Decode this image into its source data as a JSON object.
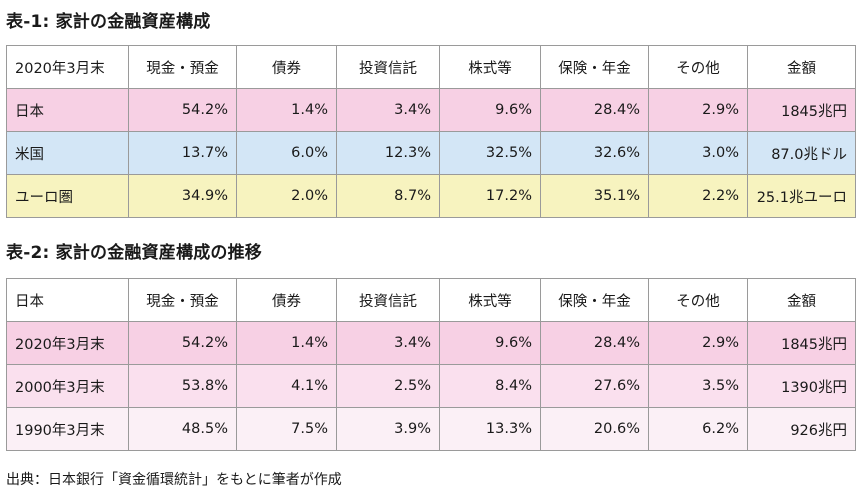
{
  "table1": {
    "title": "表-1: 家計の金融資産構成",
    "header": [
      "2020年3月末",
      "現金・預金",
      "債券",
      "投資信託",
      "株式等",
      "保険・年金",
      "その他",
      "金額"
    ],
    "rows": [
      {
        "cells": [
          "日本",
          "54.2%",
          "1.4%",
          "3.4%",
          "9.6%",
          "28.4%",
          "2.9%",
          "1845兆円"
        ],
        "color": "#f7d0e4"
      },
      {
        "cells": [
          "米国",
          "13.7%",
          "6.0%",
          "12.3%",
          "32.5%",
          "32.6%",
          "3.0%",
          "87.0兆ドル"
        ],
        "color": "#d3e6f6"
      },
      {
        "cells": [
          "ユーロ圏",
          "34.9%",
          "2.0%",
          "8.7%",
          "17.2%",
          "35.1%",
          "2.2%",
          "25.1兆ユーロ"
        ],
        "color": "#f7f3bf"
      }
    ]
  },
  "table2": {
    "title": "表-2: 家計の金融資産構成の推移",
    "header": [
      "日本",
      "現金・預金",
      "債券",
      "投資信託",
      "株式等",
      "保険・年金",
      "その他",
      "金額"
    ],
    "rows": [
      {
        "cells": [
          "2020年3月末",
          "54.2%",
          "1.4%",
          "3.4%",
          "9.6%",
          "28.4%",
          "2.9%",
          "1845兆円"
        ],
        "color": "#f7d0e4"
      },
      {
        "cells": [
          "2000年3月末",
          "53.8%",
          "4.1%",
          "2.5%",
          "8.4%",
          "27.6%",
          "3.5%",
          "1390兆円"
        ],
        "color": "#fae0ee"
      },
      {
        "cells": [
          "1990年3月末",
          "48.5%",
          "7.5%",
          "3.9%",
          "13.3%",
          "20.6%",
          "6.2%",
          "926兆円"
        ],
        "color": "#fbf0f6"
      }
    ]
  },
  "source": "出典：日本銀行「資金循環統計」をもとに筆者が作成"
}
